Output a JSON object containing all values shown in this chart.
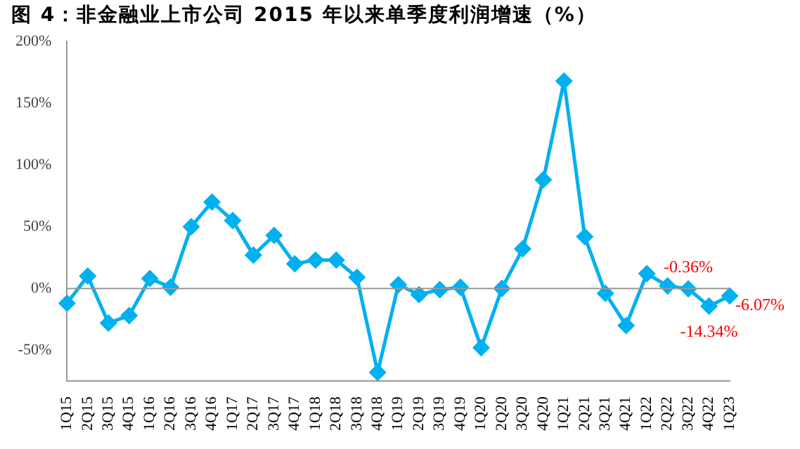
{
  "chart_data": {
    "type": "line",
    "title": "图 4：非金融业上市公司 2015 年以来单季度利润增速（%）",
    "categories": [
      "1Q15",
      "2Q15",
      "3Q15",
      "4Q15",
      "1Q16",
      "2Q16",
      "3Q16",
      "4Q16",
      "1Q17",
      "2Q17",
      "3Q17",
      "4Q17",
      "1Q18",
      "2Q18",
      "3Q18",
      "4Q18",
      "1Q19",
      "2Q19",
      "3Q19",
      "4Q19",
      "1Q20",
      "2Q20",
      "3Q20",
      "4Q20",
      "1Q21",
      "2Q21",
      "3Q21",
      "4Q21",
      "1Q22",
      "2Q22",
      "3Q22",
      "4Q22",
      "1Q23"
    ],
    "series": [
      {
        "color": "#00b0f0",
        "values": [
          -12,
          10,
          -28,
          -22,
          8,
          1,
          50,
          70,
          55,
          27,
          43,
          20,
          23,
          23,
          9,
          -68,
          3,
          -5,
          -1,
          1,
          -48,
          0,
          32,
          88,
          168,
          42,
          -4,
          -30,
          12,
          2,
          -0.36,
          -14.34,
          -6.07
        ],
        "value_labels": [
          null,
          null,
          null,
          null,
          null,
          null,
          null,
          null,
          null,
          null,
          null,
          null,
          null,
          null,
          null,
          null,
          null,
          null,
          null,
          null,
          null,
          null,
          null,
          null,
          null,
          null,
          null,
          null,
          null,
          null,
          "-0.36%",
          "-14.34%",
          "-6.07%"
        ]
      }
    ],
    "ylim": [
      -75,
      200
    ],
    "yticks": [
      {
        "value": -50,
        "label": "-50%"
      },
      {
        "value": 0,
        "label": "0%"
      },
      {
        "value": 50,
        "label": "50%"
      },
      {
        "value": 100,
        "label": "100%"
      },
      {
        "value": 150,
        "label": "150%"
      },
      {
        "value": 200,
        "label": "200%"
      }
    ],
    "ref_lines": [
      {
        "axis": "y",
        "value": 0,
        "color": "#999999"
      }
    ],
    "marker": "diamond",
    "line_style": "solid",
    "grid": false,
    "legend": false
  }
}
